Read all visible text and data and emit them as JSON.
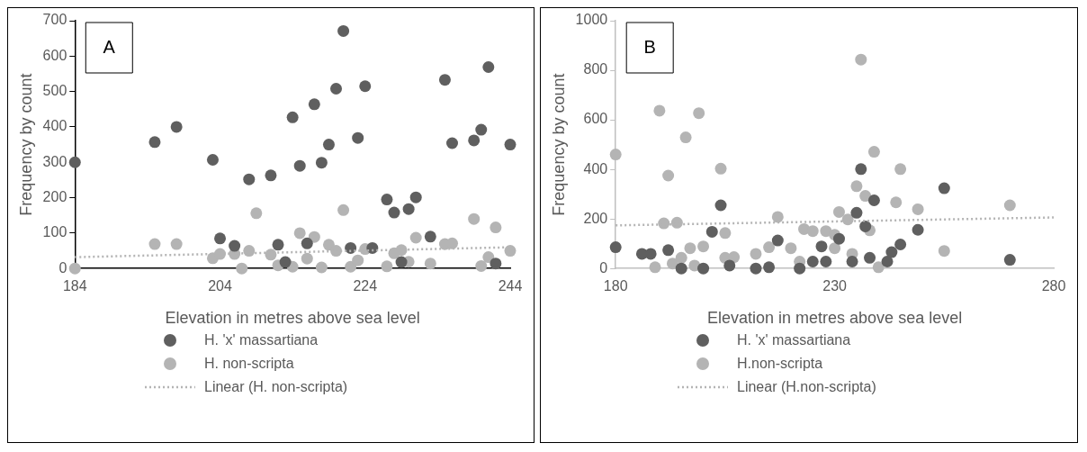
{
  "chart_data": [
    {
      "type": "scatter",
      "xlabel": "Elevation in metres above sea level",
      "ylabel": "Frequency by count",
      "annotations": [
        "A"
      ],
      "xlim": [
        184,
        244
      ],
      "xticks": [
        184,
        204,
        224,
        244
      ],
      "ylim": [
        0,
        700
      ],
      "yticks": [
        0,
        100,
        200,
        300,
        400,
        500,
        600,
        700
      ],
      "grid": false,
      "legend": "bottom",
      "marker": "circle",
      "series": [
        {
          "name": "H. 'x' massartiana",
          "color": "#5f5f5f",
          "x": [
            184,
            195,
            198,
            203,
            204,
            206,
            208,
            211,
            212,
            213,
            214,
            215,
            216,
            217,
            218,
            219,
            220,
            221,
            222,
            223,
            224,
            225,
            227,
            228,
            229,
            230,
            231,
            233,
            235,
            236,
            239,
            240,
            241,
            242,
            244
          ],
          "values": [
            300,
            357,
            400,
            307,
            85,
            64,
            252,
            263,
            67,
            18,
            427,
            290,
            71,
            464,
            299,
            350,
            508,
            671,
            58,
            369,
            515,
            58,
            195,
            158,
            18,
            168,
            201,
            90,
            533,
            354,
            362,
            392,
            569,
            14,
            350
          ]
        },
        {
          "name": "H. non-scripta",
          "color": "#b4b4b4",
          "x": [
            184,
            195,
            198,
            203,
            204,
            206,
            207,
            208,
            209,
            211,
            212,
            214,
            215,
            216,
            217,
            218,
            219,
            220,
            221,
            222,
            223,
            224,
            227,
            228,
            229,
            230,
            231,
            233,
            235,
            236,
            239,
            240,
            241,
            242,
            244
          ],
          "values": [
            0,
            69,
            69,
            29,
            41,
            41,
            0,
            50,
            156,
            39,
            9,
            5,
            100,
            28,
            89,
            3,
            67,
            50,
            165,
            5,
            23,
            55,
            6,
            43,
            52,
            19,
            87,
            14,
            69,
            71,
            140,
            7,
            32,
            116,
            50
          ]
        },
        {
          "name": "Linear (H. non-scripta)",
          "type": "line",
          "color": "#b4b4b4",
          "line_style": "dotted",
          "marker": "none",
          "x": [
            184,
            244
          ],
          "values": [
            32,
            60
          ]
        }
      ]
    },
    {
      "type": "scatter",
      "xlabel": "Elevation in metres above sea level",
      "ylabel": "Frequency by count",
      "annotations": [
        "B"
      ],
      "xlim": [
        180,
        280
      ],
      "xticks": [
        180,
        230,
        280
      ],
      "ylim": [
        0,
        1000
      ],
      "yticks": [
        0,
        200,
        400,
        600,
        800,
        1000
      ],
      "grid": false,
      "legend": "bottom",
      "marker": "circle",
      "series": [
        {
          "name": "H. 'x' massartiana",
          "color": "#5f5f5f",
          "x": [
            180,
            186,
            188,
            192,
            195,
            200,
            202,
            204,
            206,
            212,
            215,
            217,
            222,
            225,
            227,
            228,
            231,
            234,
            235,
            236,
            237,
            238,
            239,
            242,
            243,
            245,
            249,
            255,
            270
          ],
          "values": [
            86,
            59,
            59,
            74,
            0,
            0,
            148,
            255,
            12,
            0,
            5,
            113,
            0,
            28,
            89,
            28,
            120,
            28,
            225,
            401,
            170,
            43,
            275,
            28,
            66,
            97,
            156,
            324,
            35
          ]
        },
        {
          "name": "H.non-scripta",
          "color": "#b4b4b4",
          "x": [
            180,
            189,
            190,
            191,
            192,
            193,
            194,
            195,
            196,
            197,
            198,
            199,
            200,
            204,
            205,
            205,
            207,
            212,
            215,
            217,
            220,
            222,
            223,
            225,
            228,
            230,
            230,
            231,
            233,
            234,
            235,
            236,
            237,
            238,
            239,
            240,
            244,
            245,
            249,
            255,
            270
          ],
          "values": [
            460,
            5,
            637,
            182,
            375,
            20,
            185,
            43,
            529,
            82,
            12,
            627,
            89,
            403,
            143,
            43,
            46,
            59,
            86,
            208,
            82,
            28,
            159,
            151,
            151,
            136,
            82,
            228,
            198,
            59,
            332,
            843,
            293,
            154,
            471,
            5,
            267,
            401,
            239,
            71,
            255
          ]
        },
        {
          "name": "Linear (H.non-scripta)",
          "type": "line",
          "color": "#b4b4b4",
          "line_style": "dotted",
          "marker": "none",
          "x": [
            180,
            280
          ],
          "values": [
            174,
            206
          ]
        }
      ]
    }
  ]
}
